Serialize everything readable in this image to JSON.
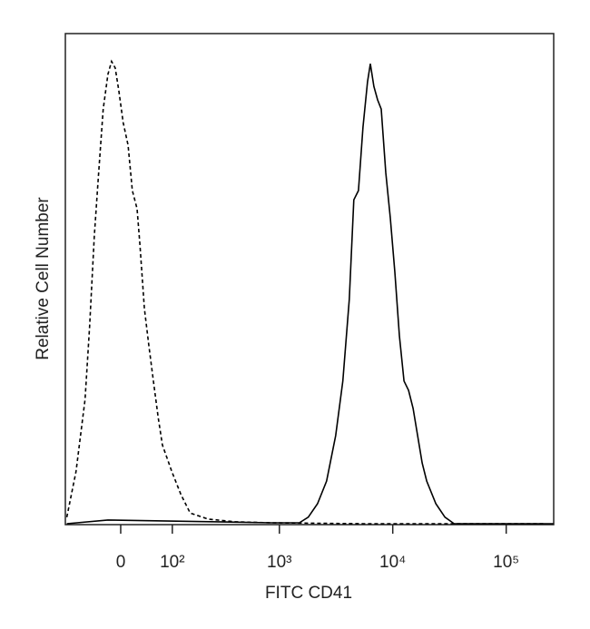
{
  "chart_data": {
    "type": "line",
    "xlabel": "FITC CD41",
    "ylabel": "Relative Cell Number",
    "xscale": "biexponential",
    "xlim": [
      -110,
      262144
    ],
    "xticks": [
      0,
      {
        "value": 100,
        "label": "10²"
      },
      {
        "value": 1000,
        "label": "10³"
      },
      {
        "value": 10000,
        "label": "10⁴"
      },
      {
        "value": 100000,
        "label": "10⁵"
      }
    ],
    "ylim": [
      0,
      106
    ],
    "series": [
      {
        "color": "#000000",
        "dash": "dashed",
        "x": [
          -106,
          -83,
          -63,
          -54,
          -45,
          -37,
          -29,
          -21,
          -15,
          -9,
          -3,
          4,
          12,
          19,
          27,
          32,
          40,
          48,
          57,
          67,
          76,
          99,
          124,
          154,
          229,
          407,
          858,
          5460,
          220000
        ],
        "values": [
          1.6,
          11.4,
          27,
          42.7,
          62.3,
          76,
          89.7,
          97.2,
          100,
          98.6,
          93.7,
          86.8,
          81.9,
          72.1,
          68.2,
          60.3,
          46.6,
          38.8,
          31,
          23.1,
          17.2,
          11.4,
          6.5,
          2.5,
          1.2,
          0.6,
          0.4,
          0.2,
          0.2
        ]
      },
      {
        "color": "#000000",
        "dash": "solid",
        "x": [
          -106,
          -21,
          76,
          858,
          1500,
          1800,
          2170,
          2610,
          3140,
          3630,
          4140,
          4540,
          4980,
          5460,
          5990,
          6340,
          6820,
          7350,
          7910,
          8670,
          9510,
          10440,
          11440,
          12560,
          13770,
          15100,
          16580,
          18180,
          19930,
          23990,
          28860,
          34740,
          260000
        ],
        "values": [
          0.2,
          1,
          0.8,
          0.4,
          0.4,
          1.6,
          4.5,
          9.4,
          19.2,
          31,
          48.6,
          70.1,
          72.1,
          85.8,
          95.6,
          99.5,
          94.6,
          91.7,
          89.7,
          76,
          66.2,
          54.5,
          40.8,
          31,
          29,
          25.1,
          19.2,
          13.3,
          9.4,
          4.5,
          1.6,
          0.2,
          0.2
        ]
      }
    ]
  }
}
